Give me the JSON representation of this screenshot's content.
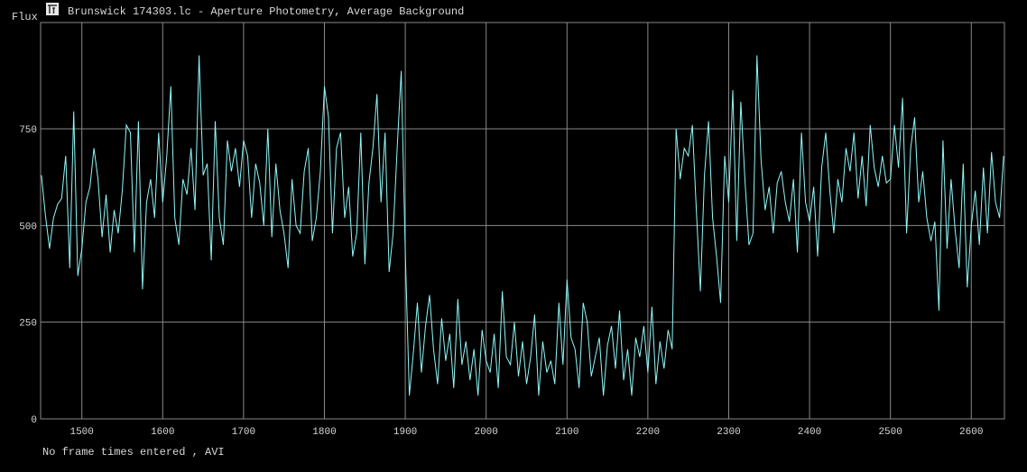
{
  "chart_data": {
    "type": "line",
    "title": "Brunswick 174303.lc - Aperture Photometry, Average Background",
    "y_label": "Flux",
    "footer": "No frame times entered , AVI",
    "color": "#8ff8f8",
    "grid": true,
    "xlim": [
      1449,
      2641
    ],
    "ylim": [
      0,
      1025
    ],
    "xticks": [
      1500,
      1600,
      1700,
      1800,
      1900,
      2000,
      2100,
      2200,
      2300,
      2400,
      2500,
      2600
    ],
    "yticks": [
      0,
      250,
      500,
      750
    ],
    "x": [
      1450,
      1455,
      1460,
      1465,
      1470,
      1475,
      1480,
      1485,
      1490,
      1495,
      1500,
      1505,
      1510,
      1515,
      1520,
      1525,
      1530,
      1535,
      1540,
      1545,
      1550,
      1555,
      1560,
      1565,
      1570,
      1575,
      1580,
      1585,
      1590,
      1595,
      1600,
      1605,
      1610,
      1615,
      1620,
      1625,
      1630,
      1635,
      1640,
      1645,
      1650,
      1655,
      1660,
      1665,
      1670,
      1675,
      1680,
      1685,
      1690,
      1695,
      1700,
      1705,
      1710,
      1715,
      1720,
      1725,
      1730,
      1735,
      1740,
      1745,
      1750,
      1755,
      1760,
      1765,
      1770,
      1775,
      1780,
      1785,
      1790,
      1795,
      1800,
      1805,
      1810,
      1815,
      1820,
      1825,
      1830,
      1835,
      1840,
      1845,
      1850,
      1855,
      1860,
      1865,
      1870,
      1875,
      1880,
      1885,
      1890,
      1895,
      1900,
      1905,
      1910,
      1915,
      1920,
      1925,
      1930,
      1935,
      1940,
      1945,
      1950,
      1955,
      1960,
      1965,
      1970,
      1975,
      1980,
      1985,
      1990,
      1995,
      2000,
      2005,
      2010,
      2015,
      2020,
      2025,
      2030,
      2035,
      2040,
      2045,
      2050,
      2055,
      2060,
      2065,
      2070,
      2075,
      2080,
      2085,
      2090,
      2095,
      2100,
      2105,
      2110,
      2115,
      2120,
      2125,
      2130,
      2135,
      2140,
      2145,
      2150,
      2155,
      2160,
      2165,
      2170,
      2175,
      2180,
      2185,
      2190,
      2195,
      2200,
      2205,
      2210,
      2215,
      2220,
      2225,
      2230,
      2235,
      2240,
      2245,
      2250,
      2255,
      2260,
      2265,
      2270,
      2275,
      2280,
      2285,
      2290,
      2295,
      2300,
      2305,
      2310,
      2315,
      2320,
      2325,
      2330,
      2335,
      2340,
      2345,
      2350,
      2355,
      2360,
      2365,
      2370,
      2375,
      2380,
      2385,
      2390,
      2395,
      2400,
      2405,
      2410,
      2415,
      2420,
      2425,
      2430,
      2435,
      2440,
      2445,
      2450,
      2455,
      2460,
      2465,
      2470,
      2475,
      2480,
      2485,
      2490,
      2495,
      2500,
      2505,
      2510,
      2515,
      2520,
      2525,
      2530,
      2535,
      2540,
      2545,
      2550,
      2555,
      2560,
      2565,
      2570,
      2575,
      2580,
      2585,
      2590,
      2595,
      2600,
      2605,
      2610,
      2615,
      2620,
      2625,
      2630,
      2635,
      2640
    ],
    "values": [
      630,
      525,
      440,
      520,
      555,
      570,
      680,
      390,
      795,
      370,
      440,
      560,
      600,
      700,
      620,
      470,
      580,
      430,
      540,
      480,
      590,
      760,
      740,
      430,
      770,
      335,
      560,
      620,
      520,
      740,
      560,
      680,
      860,
      520,
      450,
      620,
      580,
      700,
      540,
      940,
      630,
      660,
      410,
      770,
      520,
      450,
      720,
      640,
      700,
      600,
      720,
      680,
      520,
      660,
      610,
      500,
      750,
      470,
      660,
      540,
      480,
      390,
      620,
      500,
      480,
      640,
      700,
      460,
      520,
      640,
      860,
      780,
      480,
      700,
      740,
      520,
      600,
      420,
      480,
      740,
      400,
      610,
      700,
      840,
      560,
      740,
      380,
      480,
      700,
      900,
      430,
      60,
      170,
      300,
      120,
      240,
      320,
      180,
      90,
      260,
      150,
      220,
      80,
      310,
      140,
      200,
      100,
      180,
      60,
      230,
      150,
      120,
      220,
      80,
      330,
      160,
      140,
      250,
      110,
      200,
      90,
      160,
      270,
      60,
      200,
      120,
      150,
      90,
      300,
      140,
      360,
      210,
      180,
      80,
      300,
      250,
      110,
      160,
      210,
      60,
      190,
      240,
      130,
      280,
      100,
      180,
      60,
      210,
      160,
      240,
      120,
      290,
      90,
      200,
      130,
      230,
      180,
      750,
      620,
      700,
      680,
      760,
      540,
      330,
      630,
      770,
      520,
      420,
      300,
      680,
      560,
      850,
      460,
      820,
      620,
      450,
      480,
      940,
      670,
      540,
      600,
      480,
      610,
      640,
      560,
      510,
      620,
      430,
      740,
      560,
      510,
      600,
      420,
      650,
      740,
      590,
      480,
      620,
      560,
      700,
      640,
      740,
      570,
      680,
      550,
      760,
      650,
      600,
      680,
      610,
      620,
      760,
      650,
      830,
      480,
      700,
      780,
      560,
      640,
      520,
      460,
      510,
      280,
      720,
      440,
      620,
      490,
      390,
      660,
      340,
      500,
      590,
      450,
      650,
      480,
      690,
      560,
      520,
      680
    ]
  }
}
